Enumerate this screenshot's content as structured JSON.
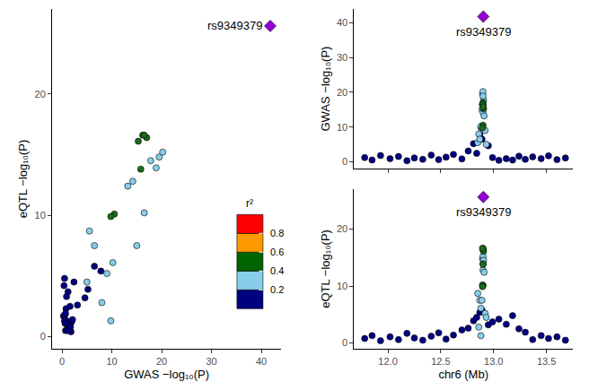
{
  "chart_data": [
    {
      "type": "scatter",
      "x_label": "GWAS −log₁₀(P)",
      "y_label": "eQTL −log₁₀(P)",
      "xlim": [
        -2,
        44
      ],
      "ylim": [
        -1,
        27
      ],
      "xticks": [
        0,
        10,
        20,
        30,
        40
      ],
      "yticks": [
        0,
        10,
        20
      ],
      "annotation": "rs9349379",
      "color_key": {
        "title": "r²",
        "colors": [
          "#000080",
          "#87ceeb",
          "#006400",
          "#ff9900",
          "#ff0000"
        ],
        "ticks": [
          0.2,
          0.4,
          0.6,
          0.8
        ]
      },
      "series": [
        {
          "color": "#000080",
          "marker": "circle",
          "x": [
            1.2,
            0.5,
            1.8,
            0.9,
            1.5,
            0.3,
            1.1,
            0.7,
            1.9,
            0.6,
            1.3,
            2.1,
            0.8,
            3.1,
            5.2,
            2.4,
            7.8,
            4.6,
            1.2,
            0.4,
            0.9,
            0.5,
            1.6,
            0.7,
            1.4,
            0.9,
            1.7,
            0.6,
            1.1,
            6.5
          ],
          "values": [
            0.8,
            1.3,
            0.4,
            1.1,
            0.6,
            1.7,
            0.9,
            0.5,
            1.2,
            1.8,
            0.7,
            1.4,
            2.3,
            2.6,
            3.9,
            4.5,
            5.4,
            3.2,
            3.7,
            4.2,
            3.3,
            4.8,
            2.5,
            1.9,
            0.6,
            1.3,
            0.8,
            1.1,
            0.5,
            5.8
          ]
        },
        {
          "color": "#87ceeb",
          "marker": "circle",
          "x": [
            8.0,
            9.8,
            5.5,
            6.5,
            10.2,
            15.0,
            16.5,
            14.2,
            19.5,
            20.2,
            17.8,
            18.9,
            13.2,
            9.0,
            5.0
          ],
          "values": [
            2.8,
            1.3,
            8.7,
            7.5,
            6.1,
            7.5,
            10.2,
            12.8,
            14.8,
            15.2,
            14.5,
            13.9,
            12.4,
            5.2,
            4.5
          ]
        },
        {
          "color": "#1e6b1e",
          "marker": "circle",
          "x": [
            16.2,
            17.0,
            15.3,
            16.5,
            15.8,
            10.5,
            9.8
          ],
          "values": [
            16.6,
            16.4,
            16.1,
            16.6,
            13.8,
            10.1,
            9.9
          ]
        },
        {
          "color": "#9400d3",
          "marker": "diamond",
          "x": [
            41.8
          ],
          "values": [
            25.6
          ]
        }
      ]
    },
    {
      "type": "scatter",
      "y_label": "GWAS −log₁₀(P)",
      "xlim": [
        11.68,
        13.75
      ],
      "ylim": [
        -2,
        44
      ],
      "xticks": [
        {
          "value": 12,
          "label": "12.0"
        },
        {
          "value": 12.5,
          "label": "12.5"
        },
        {
          "value": 13,
          "label": "13.0"
        },
        {
          "value": 13.5,
          "label": "13.5"
        }
      ],
      "yticks": [
        0,
        10,
        20,
        30,
        40
      ],
      "tick_labels": "y",
      "annotation": "rs9349379",
      "series": [
        {
          "color": "#000080",
          "marker": "circle",
          "x": [
            11.78,
            11.85,
            11.93,
            12.02,
            12.1,
            12.18,
            12.25,
            12.33,
            12.41,
            12.48,
            12.55,
            12.62,
            12.7,
            12.76,
            12.81,
            12.84,
            12.87,
            12.95,
            12.99,
            13.05,
            13.12,
            13.18,
            13.24,
            13.3,
            13.37,
            13.45,
            13.52,
            13.6,
            13.68,
            12.89
          ],
          "values": [
            1.2,
            0.5,
            1.8,
            0.9,
            1.5,
            0.3,
            1.1,
            0.7,
            1.9,
            0.6,
            1.3,
            2.1,
            0.8,
            3.1,
            5.2,
            2.4,
            7.8,
            4.6,
            1.2,
            0.4,
            0.9,
            0.5,
            1.6,
            0.7,
            1.4,
            0.9,
            1.7,
            0.6,
            1.1,
            6.5
          ]
        },
        {
          "color": "#87ceeb",
          "marker": "circle",
          "x": [
            12.86,
            12.88,
            12.85,
            12.87,
            12.88,
            12.89,
            12.895,
            12.9,
            12.895,
            12.9,
            12.905,
            12.9,
            12.91,
            12.92,
            12.93
          ],
          "values": [
            8.0,
            9.8,
            5.5,
            6.5,
            10.2,
            15.0,
            16.5,
            14.2,
            19.5,
            20.2,
            17.8,
            18.9,
            13.2,
            9.0,
            5.0
          ]
        },
        {
          "color": "#1e6b1e",
          "marker": "circle",
          "x": [
            12.9,
            12.9,
            12.905,
            12.895,
            12.9,
            12.9,
            12.895
          ],
          "values": [
            16.2,
            17.0,
            15.3,
            16.5,
            15.8,
            10.5,
            9.8
          ]
        },
        {
          "color": "#9400d3",
          "marker": "diamond",
          "x": [
            12.903
          ],
          "values": [
            41.8
          ]
        }
      ]
    },
    {
      "type": "scatter",
      "x_label": "chr6 (Mb)",
      "y_label": "eQTL −log₁₀(P)",
      "xlim": [
        11.68,
        13.75
      ],
      "ylim": [
        -1,
        27
      ],
      "xticks": [
        {
          "value": 12,
          "label": "12.0"
        },
        {
          "value": 12.5,
          "label": "12.5"
        },
        {
          "value": 13,
          "label": "13.0"
        },
        {
          "value": 13.5,
          "label": "13.5"
        }
      ],
      "yticks": [
        0,
        10,
        20
      ],
      "annotation": "rs9349379",
      "series": [
        {
          "color": "#000080",
          "marker": "circle",
          "x": [
            11.78,
            11.85,
            11.93,
            12.02,
            12.1,
            12.18,
            12.25,
            12.33,
            12.41,
            12.48,
            12.55,
            12.62,
            12.7,
            12.76,
            12.81,
            12.84,
            12.87,
            12.95,
            12.99,
            13.05,
            13.12,
            13.18,
            13.24,
            13.3,
            13.37,
            13.45,
            13.52,
            13.6,
            13.68,
            12.89
          ],
          "values": [
            0.8,
            1.3,
            0.4,
            1.1,
            0.6,
            1.7,
            0.9,
            0.5,
            1.2,
            1.8,
            0.7,
            1.4,
            2.3,
            2.6,
            3.9,
            4.5,
            5.4,
            3.2,
            3.7,
            4.2,
            3.3,
            4.8,
            2.5,
            1.9,
            0.6,
            1.3,
            0.8,
            1.1,
            0.5,
            5.8
          ]
        },
        {
          "color": "#87ceeb",
          "marker": "circle",
          "x": [
            12.86,
            12.88,
            12.85,
            12.87,
            12.88,
            12.89,
            12.895,
            12.9,
            12.895,
            12.9,
            12.905,
            12.9,
            12.91,
            12.92,
            12.93
          ],
          "values": [
            2.8,
            1.3,
            8.7,
            7.5,
            6.1,
            7.5,
            10.2,
            12.8,
            14.8,
            15.2,
            14.5,
            13.9,
            12.4,
            5.2,
            4.5
          ]
        },
        {
          "color": "#1e6b1e",
          "marker": "circle",
          "x": [
            12.9,
            12.9,
            12.905,
            12.895,
            12.9,
            12.9,
            12.895
          ],
          "values": [
            16.6,
            16.4,
            16.1,
            16.6,
            13.8,
            10.1,
            9.9
          ]
        },
        {
          "color": "#9400d3",
          "marker": "diamond",
          "x": [
            12.903
          ],
          "values": [
            25.6
          ]
        }
      ]
    }
  ]
}
